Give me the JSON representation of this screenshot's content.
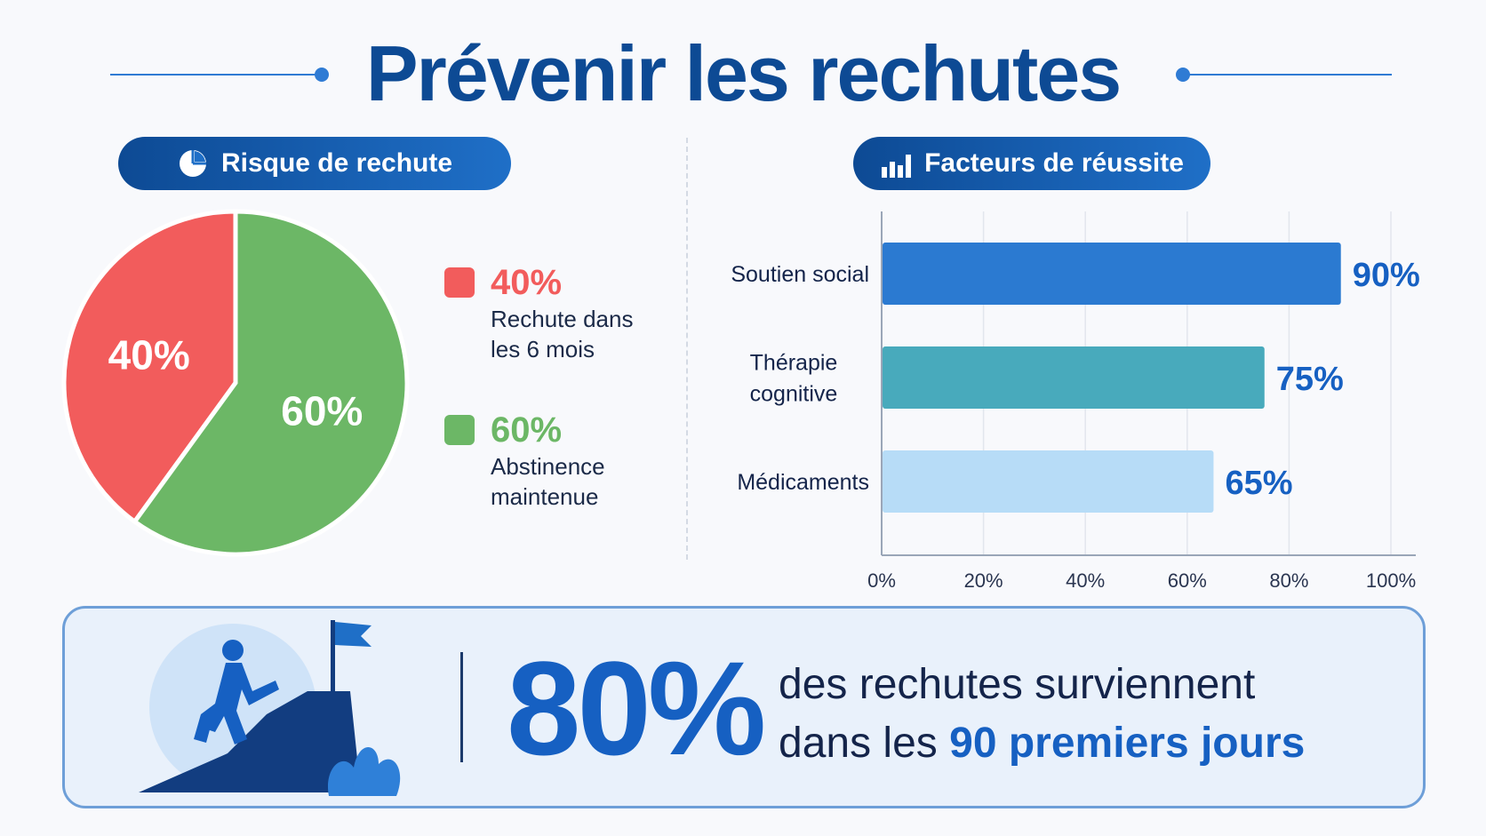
{
  "header": {
    "title": "Prévenir les rechutes"
  },
  "left_panel": {
    "pill_label": "Risque de rechute",
    "pill_icon": "pie-chart-icon",
    "legend": [
      {
        "percent": "40%",
        "label_line1": "Rechute dans",
        "label_line2": "les 6 mois",
        "color": "#f25c5c"
      },
      {
        "percent": "60%",
        "label_line1": "Abstinence",
        "label_line2": "maintenue",
        "color": "#6cb766"
      }
    ]
  },
  "right_panel": {
    "pill_label": "Facteurs de réussite",
    "pill_icon": "bar-chart-icon"
  },
  "banner": {
    "big_percent": "80%",
    "line1": "des rechutes surviennent",
    "line2_plain": "dans les",
    "line2_bold": "90 premiers jours",
    "icon": "person-climbing-to-flag-icon"
  },
  "colors": {
    "accent": "#1660c2",
    "title": "#0d4a94",
    "red": "#f25c5c",
    "green": "#6cb766"
  },
  "chart_data": [
    {
      "type": "pie",
      "categories": [
        "Rechute dans les 6 mois",
        "Abstinence maintenue"
      ],
      "values": [
        40,
        60
      ],
      "labels": [
        "40%",
        "60%"
      ],
      "colors": [
        "#f25c5c",
        "#6cb766"
      ]
    },
    {
      "type": "bar",
      "orientation": "horizontal",
      "categories": [
        "Soutien social",
        "Thérapie cognitive",
        "Médicaments"
      ],
      "values": [
        90,
        75,
        65
      ],
      "labels": [
        "90%",
        "75%",
        "65%"
      ],
      "colors": [
        "#2b7ad1",
        "#48aabc",
        "#b7dcf7"
      ],
      "xlim": [
        0,
        100
      ],
      "xticks": [
        "0%",
        "20%",
        "40%",
        "60%",
        "80%",
        "100%"
      ],
      "grid": true
    }
  ]
}
